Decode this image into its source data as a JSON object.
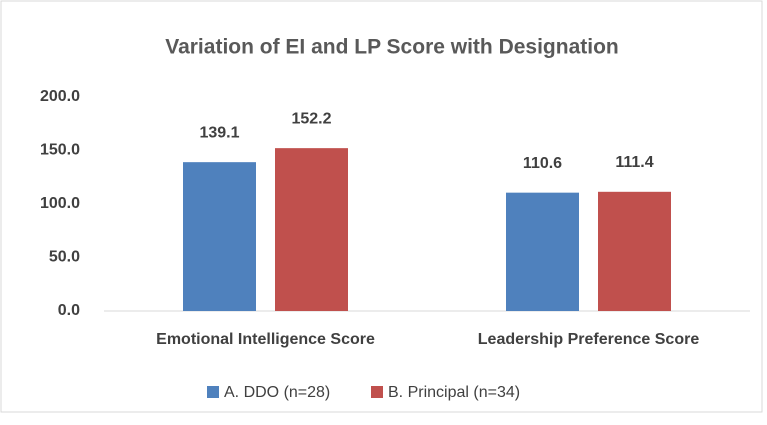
{
  "chart_data": {
    "type": "bar",
    "title": "Variation of EI and LP Score with Designation",
    "categories": [
      "Emotional Intelligence Score",
      "Leadership Preference Score"
    ],
    "series": [
      {
        "name": "A. DDO (n=28)",
        "color": "#4f81bd",
        "values": [
          139.1,
          110.6
        ]
      },
      {
        "name": "B. Principal (n=34)",
        "color": "#c0504d",
        "values": [
          152.2,
          111.4
        ]
      }
    ],
    "ylim": [
      0,
      200
    ],
    "yticks": [
      {
        "value": 0,
        "label": "0.0"
      },
      {
        "value": 50,
        "label": "50.0"
      },
      {
        "value": 100,
        "label": "100.0"
      },
      {
        "value": 150,
        "label": "150.0"
      },
      {
        "value": 200,
        "label": "200.0"
      }
    ],
    "grid": false,
    "legend": "bottom"
  }
}
